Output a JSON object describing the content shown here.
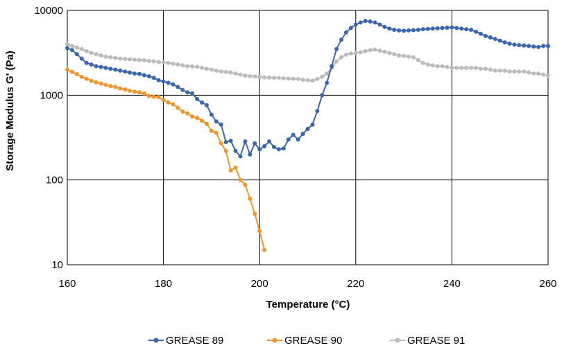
{
  "chart_data": {
    "type": "line",
    "xlabel": "Temperature (°C)",
    "ylabel": "Storage Modulus G' (Pa)",
    "xlim": [
      160,
      260
    ],
    "ylim": [
      10,
      10000
    ],
    "yscale": "log",
    "grid": true,
    "legend_position": "bottom",
    "x_ticks": [
      "160",
      "180",
      "200",
      "220",
      "240",
      "260"
    ],
    "y_ticks": [
      "10",
      "100",
      "1000",
      "10000"
    ],
    "series": [
      {
        "name": "GREASE 89",
        "color": "#3A66B0",
        "x": [
          160,
          161,
          162,
          163,
          164,
          165,
          166,
          167,
          168,
          169,
          170,
          171,
          172,
          173,
          174,
          175,
          176,
          177,
          178,
          179,
          180,
          181,
          182,
          183,
          184,
          185,
          186,
          187,
          188,
          189,
          190,
          191,
          192,
          193,
          194,
          195,
          196,
          197,
          198,
          199,
          200,
          201,
          202,
          203,
          204,
          205,
          206,
          207,
          208,
          209,
          210,
          211,
          212,
          213,
          214,
          215,
          216,
          217,
          218,
          219,
          220,
          221,
          222,
          223,
          224,
          225,
          226,
          227,
          228,
          229,
          230,
          231,
          232,
          233,
          234,
          235,
          236,
          237,
          238,
          239,
          240,
          241,
          242,
          243,
          244,
          245,
          246,
          247,
          248,
          249,
          250,
          251,
          252,
          253,
          254,
          255,
          256,
          257,
          258,
          259,
          260
        ],
        "values": [
          3600,
          3400,
          3050,
          2700,
          2400,
          2300,
          2200,
          2150,
          2100,
          2050,
          2000,
          1950,
          1900,
          1850,
          1800,
          1780,
          1720,
          1670,
          1600,
          1500,
          1450,
          1400,
          1340,
          1250,
          1150,
          1080,
          1050,
          900,
          820,
          760,
          590,
          490,
          450,
          280,
          290,
          220,
          190,
          285,
          200,
          270,
          230,
          250,
          285,
          245,
          230,
          235,
          300,
          340,
          300,
          350,
          400,
          450,
          650,
          1000,
          1400,
          2200,
          3500,
          4500,
          5500,
          6200,
          6800,
          7200,
          7500,
          7400,
          7200,
          6800,
          6400,
          6100,
          5900,
          5800,
          5750,
          5800,
          5850,
          5900,
          6000,
          6050,
          6100,
          6150,
          6200,
          6250,
          6300,
          6200,
          6100,
          6000,
          5900,
          5600,
          5300,
          5000,
          4800,
          4600,
          4400,
          4200,
          4050,
          3950,
          3900,
          3850,
          3800,
          3750,
          3700,
          3800,
          3800
        ]
      },
      {
        "name": "GREASE 90",
        "color": "#F0952C",
        "x": [
          160,
          161,
          162,
          163,
          164,
          165,
          166,
          167,
          168,
          169,
          170,
          171,
          172,
          173,
          174,
          175,
          176,
          177,
          178,
          179,
          180,
          181,
          182,
          183,
          184,
          185,
          186,
          187,
          188,
          189,
          190,
          191,
          192,
          193,
          194,
          195,
          196,
          197,
          198,
          199,
          200,
          201
        ],
        "values": [
          2000,
          1880,
          1770,
          1650,
          1560,
          1480,
          1420,
          1370,
          1320,
          1280,
          1250,
          1200,
          1170,
          1130,
          1100,
          1080,
          1050,
          980,
          960,
          950,
          880,
          820,
          780,
          710,
          640,
          610,
          560,
          540,
          500,
          460,
          380,
          360,
          270,
          220,
          130,
          140,
          100,
          88,
          60,
          40,
          25,
          15
        ]
      },
      {
        "name": "GREASE 91",
        "color": "#BBBBBB",
        "x": [
          160,
          161,
          162,
          163,
          164,
          165,
          166,
          167,
          168,
          169,
          170,
          171,
          172,
          173,
          174,
          175,
          176,
          177,
          178,
          179,
          180,
          181,
          182,
          183,
          184,
          185,
          186,
          187,
          188,
          189,
          190,
          191,
          192,
          193,
          194,
          195,
          196,
          197,
          198,
          199,
          200,
          201,
          202,
          203,
          204,
          205,
          206,
          207,
          208,
          209,
          210,
          211,
          212,
          213,
          214,
          215,
          216,
          217,
          218,
          219,
          220,
          221,
          222,
          223,
          224,
          225,
          226,
          227,
          228,
          229,
          230,
          231,
          232,
          233,
          234,
          235,
          236,
          237,
          238,
          239,
          240,
          241,
          242,
          243,
          244,
          245,
          246,
          247,
          248,
          249,
          250,
          251,
          252,
          253,
          254,
          255,
          256,
          257,
          258,
          259,
          260
        ],
        "values": [
          4000,
          3800,
          3650,
          3500,
          3300,
          3150,
          3050,
          2950,
          2850,
          2800,
          2750,
          2700,
          2680,
          2650,
          2620,
          2600,
          2580,
          2530,
          2500,
          2460,
          2440,
          2400,
          2350,
          2300,
          2250,
          2200,
          2180,
          2160,
          2100,
          2050,
          2000,
          1950,
          1900,
          1880,
          1850,
          1800,
          1750,
          1700,
          1680,
          1660,
          1640,
          1620,
          1610,
          1600,
          1600,
          1580,
          1570,
          1560,
          1550,
          1520,
          1500,
          1480,
          1550,
          1650,
          1800,
          2100,
          2500,
          2800,
          3000,
          3100,
          3150,
          3200,
          3300,
          3400,
          3450,
          3350,
          3250,
          3150,
          3050,
          2950,
          2900,
          2850,
          2800,
          2600,
          2400,
          2300,
          2250,
          2200,
          2200,
          2150,
          2100,
          2100,
          2100,
          2100,
          2100,
          2100,
          2050,
          2050,
          2000,
          1950,
          1950,
          1950,
          1900,
          1900,
          1900,
          1900,
          1850,
          1800,
          1800,
          1750,
          1700
        ]
      }
    ]
  }
}
